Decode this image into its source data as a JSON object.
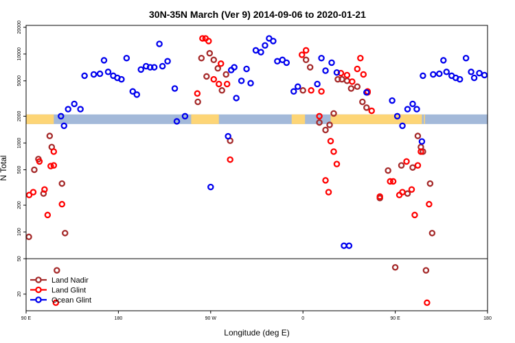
{
  "chart_data": {
    "type": "scatter",
    "title": "30N-35N March (Ver 9)   2014-09-06 to 2020-01-21",
    "xlabel": "Longitude (deg E)",
    "ylabel": "N Total",
    "x_axis": {
      "range": [
        90,
        540
      ],
      "ticks": [
        {
          "value": 90,
          "label": "90 E"
        },
        {
          "value": 180,
          "label": "180"
        },
        {
          "value": 270,
          "label": "90 W"
        },
        {
          "value": 360,
          "label": "0"
        },
        {
          "value": 450,
          "label": "90 E"
        },
        {
          "value": 540,
          "label": "180"
        }
      ]
    },
    "y_axis": {
      "scale": "log",
      "range": [
        13,
        21000
      ],
      "reference_line": 50,
      "ticks": [
        {
          "value": 20,
          "label": "20"
        },
        {
          "value": 50,
          "label": "50"
        },
        {
          "value": 100,
          "label": "100"
        },
        {
          "value": 200,
          "label": "200"
        },
        {
          "value": 500,
          "label": "500"
        },
        {
          "value": 1000,
          "label": "1000"
        },
        {
          "value": 2000,
          "label": "2000"
        },
        {
          "value": 5000,
          "label": "5000"
        },
        {
          "value": 10000,
          "label": "10000"
        },
        {
          "value": 20000,
          "label": "20000"
        }
      ]
    },
    "surface_band": {
      "y_value": 1850,
      "ocean_color": "#a3b9d9",
      "land_color": "#fdd576",
      "land_segments": [
        [
          90,
          117
        ],
        [
          251,
          278
        ],
        [
          349,
          362
        ],
        [
          387,
          476
        ],
        [
          478,
          479
        ]
      ]
    },
    "legend": {
      "position": "bottom-left",
      "entries": [
        {
          "label": "Land Nadir",
          "color": "#a52a2a"
        },
        {
          "label": "Land Glint",
          "color": "#ff0000"
        },
        {
          "label": "Ocean Glint",
          "color": "#0000ee"
        }
      ]
    },
    "series": [
      {
        "name": "Land Nadir",
        "color": "#a52a2a",
        "points": [
          [
            92.7,
            88
          ],
          [
            98,
            500
          ],
          [
            102,
            660
          ],
          [
            107,
            270
          ],
          [
            113,
            1200
          ],
          [
            115,
            900
          ],
          [
            125,
            350
          ],
          [
            128,
            97
          ],
          [
            120,
            37
          ],
          [
            257.5,
            2900
          ],
          [
            261,
            9000
          ],
          [
            266,
            5600
          ],
          [
            269,
            10200
          ],
          [
            273,
            8600
          ],
          [
            277,
            6900
          ],
          [
            281,
            3900
          ],
          [
            285,
            5900
          ],
          [
            289,
            1060
          ],
          [
            360,
            3900
          ],
          [
            363,
            8600
          ],
          [
            367,
            7100
          ],
          [
            376,
            1700
          ],
          [
            382,
            1400
          ],
          [
            386,
            1600
          ],
          [
            390,
            2150
          ],
          [
            394,
            5200
          ],
          [
            398,
            5200
          ],
          [
            403,
            5000
          ],
          [
            407,
            4100
          ],
          [
            413,
            4300
          ],
          [
            418,
            2900
          ],
          [
            422,
            2500
          ],
          [
            435,
            240
          ],
          [
            462,
            270
          ],
          [
            443,
            490
          ],
          [
            450,
            40
          ],
          [
            456,
            560
          ],
          [
            467,
            530
          ],
          [
            472,
            1200
          ],
          [
            475,
            900
          ],
          [
            477,
            800
          ],
          [
            484,
            350
          ],
          [
            486,
            97
          ],
          [
            480,
            37
          ]
        ]
      },
      {
        "name": "Land Glint",
        "color": "#ff0000",
        "points": [
          [
            93,
            260
          ],
          [
            97,
            280
          ],
          [
            103,
            620
          ],
          [
            108,
            300
          ],
          [
            111,
            155
          ],
          [
            114,
            550
          ],
          [
            117,
            800
          ],
          [
            117,
            560
          ],
          [
            125,
            205
          ],
          [
            119,
            16
          ],
          [
            257,
            3600
          ],
          [
            262,
            15000
          ],
          [
            265,
            15000
          ],
          [
            268,
            14000
          ],
          [
            273,
            5200
          ],
          [
            278,
            4600
          ],
          [
            280,
            7800
          ],
          [
            286,
            4600
          ],
          [
            289,
            650
          ],
          [
            359,
            9800
          ],
          [
            363,
            11000
          ],
          [
            368,
            3900
          ],
          [
            376,
            2000
          ],
          [
            378,
            3800
          ],
          [
            382,
            380
          ],
          [
            385,
            280
          ],
          [
            387,
            1050
          ],
          [
            390,
            800
          ],
          [
            393,
            580
          ],
          [
            397,
            6100
          ],
          [
            403,
            5800
          ],
          [
            408,
            4900
          ],
          [
            413,
            6800
          ],
          [
            416,
            9000
          ],
          [
            419,
            5900
          ],
          [
            423,
            3700
          ],
          [
            427,
            2300
          ],
          [
            435,
            250
          ],
          [
            445,
            370
          ],
          [
            448,
            370
          ],
          [
            454,
            260
          ],
          [
            457,
            280
          ],
          [
            461,
            620
          ],
          [
            466,
            300
          ],
          [
            469,
            155
          ],
          [
            472,
            560
          ],
          [
            475,
            800
          ],
          [
            483,
            205
          ],
          [
            481,
            16
          ],
          [
            423,
            3800
          ]
        ]
      },
      {
        "name": "Ocean Glint",
        "color": "#0000ee",
        "points": [
          [
            124,
            2000
          ],
          [
            127,
            1560
          ],
          [
            131,
            2400
          ],
          [
            137,
            2750
          ],
          [
            143,
            2400
          ],
          [
            147,
            5700
          ],
          [
            156,
            5900
          ],
          [
            162,
            6000
          ],
          [
            166,
            8500
          ],
          [
            170,
            6300
          ],
          [
            175,
            5700
          ],
          [
            179,
            5400
          ],
          [
            183,
            5200
          ],
          [
            188,
            9000
          ],
          [
            194,
            3800
          ],
          [
            198,
            3500
          ],
          [
            202,
            6700
          ],
          [
            207,
            7300
          ],
          [
            211,
            7100
          ],
          [
            215,
            7100
          ],
          [
            220,
            13000
          ],
          [
            223,
            7300
          ],
          [
            228,
            8300
          ],
          [
            235,
            4100
          ],
          [
            237,
            1750
          ],
          [
            290,
            6600
          ],
          [
            293,
            7100
          ],
          [
            295,
            3200
          ],
          [
            300,
            5000
          ],
          [
            305,
            6800
          ],
          [
            309,
            4700
          ],
          [
            314,
            11000
          ],
          [
            319,
            10500
          ],
          [
            323,
            12500
          ],
          [
            327,
            15000
          ],
          [
            331,
            14000
          ],
          [
            335,
            8300
          ],
          [
            340,
            8600
          ],
          [
            344,
            8000
          ],
          [
            351,
            3800
          ],
          [
            355,
            4300
          ],
          [
            374,
            4600
          ],
          [
            378,
            9000
          ],
          [
            382,
            6500
          ],
          [
            388,
            8000
          ],
          [
            393,
            6200
          ],
          [
            400,
            70
          ],
          [
            405,
            70
          ],
          [
            422,
            3700
          ],
          [
            447,
            3000
          ],
          [
            452,
            2000
          ],
          [
            457,
            1560
          ],
          [
            462,
            2400
          ],
          [
            467,
            2750
          ],
          [
            471,
            2400
          ],
          [
            477,
            5700
          ],
          [
            487,
            5900
          ],
          [
            493,
            6000
          ],
          [
            497,
            8500
          ],
          [
            500,
            6300
          ],
          [
            505,
            5700
          ],
          [
            509,
            5400
          ],
          [
            513,
            5200
          ],
          [
            519,
            9000
          ],
          [
            524,
            6300
          ],
          [
            527,
            5400
          ],
          [
            532,
            6100
          ],
          [
            537,
            5800
          ],
          [
            270,
            320
          ],
          [
            287,
            1190
          ],
          [
            245,
            2000
          ],
          [
            476,
            1040
          ]
        ]
      }
    ]
  }
}
